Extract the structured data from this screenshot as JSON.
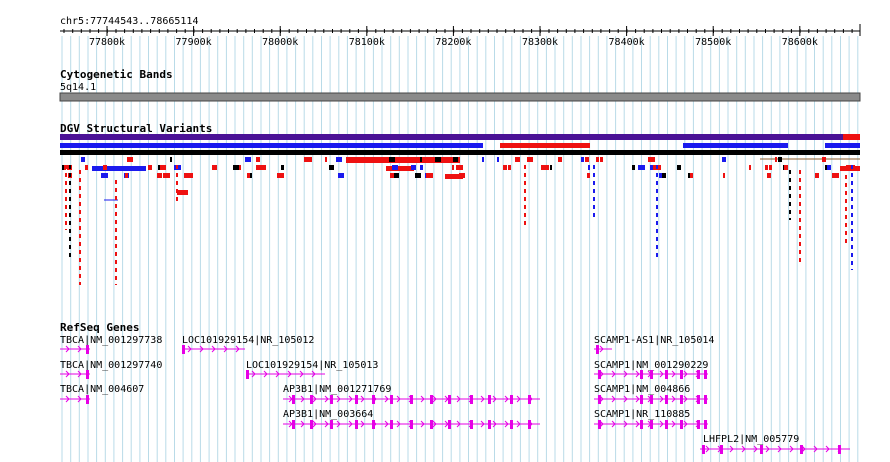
{
  "browser": {
    "location": "chr5:77744543..78665114",
    "ticks": [
      "77800k",
      "77900k",
      "78000k",
      "78100k",
      "78200k",
      "78300k",
      "78400k",
      "78500k",
      "78600k"
    ],
    "colors": {
      "grid": "#b9dbe8",
      "gene": "#e600e6",
      "dgv_gain": "#1a1aee",
      "dgv_loss": "#ee1111",
      "dgv_purple": "#4b1296",
      "band": "#8a8a8a"
    }
  },
  "tracks": {
    "cytoband": {
      "title": "Cytogenetic Bands",
      "band_label": "5q14.1"
    },
    "dgv": {
      "title": "DGV Structural Variants"
    },
    "refseq": {
      "title": "RefSeq Genes",
      "genes": [
        "TBCA|NM_001297738",
        "TBCA|NM_001297740",
        "TBCA|NM_004607",
        "LOC101929154|NR_105012",
        "LOC101929154|NR_105013",
        "AP3B1|NM_001271769",
        "AP3B1|NM_003664",
        "SCAMP1-AS1|NR_105014",
        "SCAMP1|NM_001290229",
        "SCAMP1|NM_004866",
        "SCAMP1|NR_110885",
        "LHFPL2|NM_005779"
      ]
    }
  }
}
